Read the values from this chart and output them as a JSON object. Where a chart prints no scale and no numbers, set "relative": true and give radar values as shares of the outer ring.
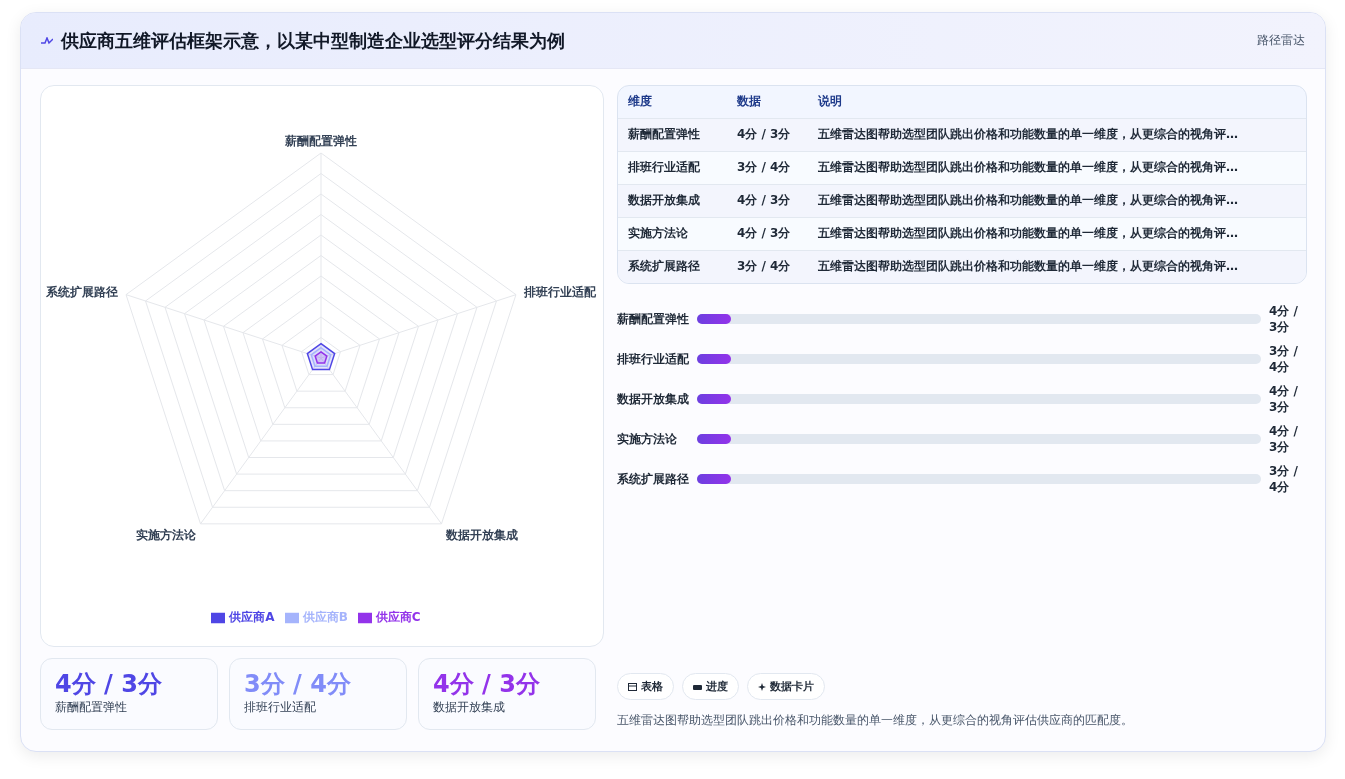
{
  "chart_data": [
    {
      "type": "other",
      "title": "供应商五维评估框架示意，以某中型制造企业选型评分结果为例",
      "subtitle": "路径雷达"
    },
    {
      "type": "radar",
      "categories": [
        "薪酬配置弹性",
        "排班行业适配",
        "数据开放集成",
        "实施方法论",
        "系统扩展路径"
      ],
      "relative": true,
      "legend": "bottom",
      "series": [
        {
          "name": "供应商A",
          "color": "#4f46e5",
          "values": [
            0.07,
            0.07,
            0.07,
            0.07,
            0.07
          ]
        },
        {
          "name": "供应商B",
          "color": "#a5b4fc",
          "values": [
            0.05,
            0.05,
            0.05,
            0.05,
            0.05
          ]
        },
        {
          "name": "供应商C",
          "color": "#9333ea",
          "values": [
            0.03,
            0.03,
            0.03,
            0.03,
            0.03
          ]
        }
      ]
    },
    {
      "type": "other",
      "categories": [
        "维度",
        "数据",
        "说明"
      ],
      "cell_labels": [
        [
          "薪酬配置弹性",
          "4分 / 3分",
          "五维雷达图帮助选型团队跳出价格和功能数量的单一维度，从更综合的视角评…"
        ],
        [
          "排班行业适配",
          "3分 / 4分",
          "五维雷达图帮助选型团队跳出价格和功能数量的单一维度，从更综合的视角评…"
        ],
        [
          "数据开放集成",
          "4分 / 3分",
          "五维雷达图帮助选型团队跳出价格和功能数量的单一维度，从更综合的视角评…"
        ],
        [
          "实施方法论",
          "4分 / 3分",
          "五维雷达图帮助选型团队跳出价格和功能数量的单一维度，从更综合的视角评…"
        ],
        [
          "系统扩展路径",
          "3分 / 4分",
          "五维雷达图帮助选型团队跳出价格和功能数量的单一维度，从更综合的视角评…"
        ]
      ]
    },
    {
      "type": "other",
      "categories": [
        "薪酬配置弹性",
        "排班行业适配",
        "数据开放集成",
        "实施方法论",
        "系统扩展路径"
      ],
      "value_labels": [
        "4分 / 3分",
        "3分 / 4分",
        "4分 / 3分",
        "4分 / 3分",
        "3分 / 4分"
      ]
    },
    {
      "type": "other",
      "categories": [
        "薪酬配置弹性",
        "排班行业适配",
        "数据开放集成"
      ],
      "value_labels": [
        "4分 / 3分",
        "3分 / 4分",
        "4分 / 3分"
      ]
    },
    {
      "type": "other",
      "annotations": [
        "表格",
        "进度",
        "数据卡片",
        "五维雷达图帮助选型团队跳出价格和功能数量的单一维度，从更综合的视角评估供应商的匹配度。"
      ]
    }
  ]
}
